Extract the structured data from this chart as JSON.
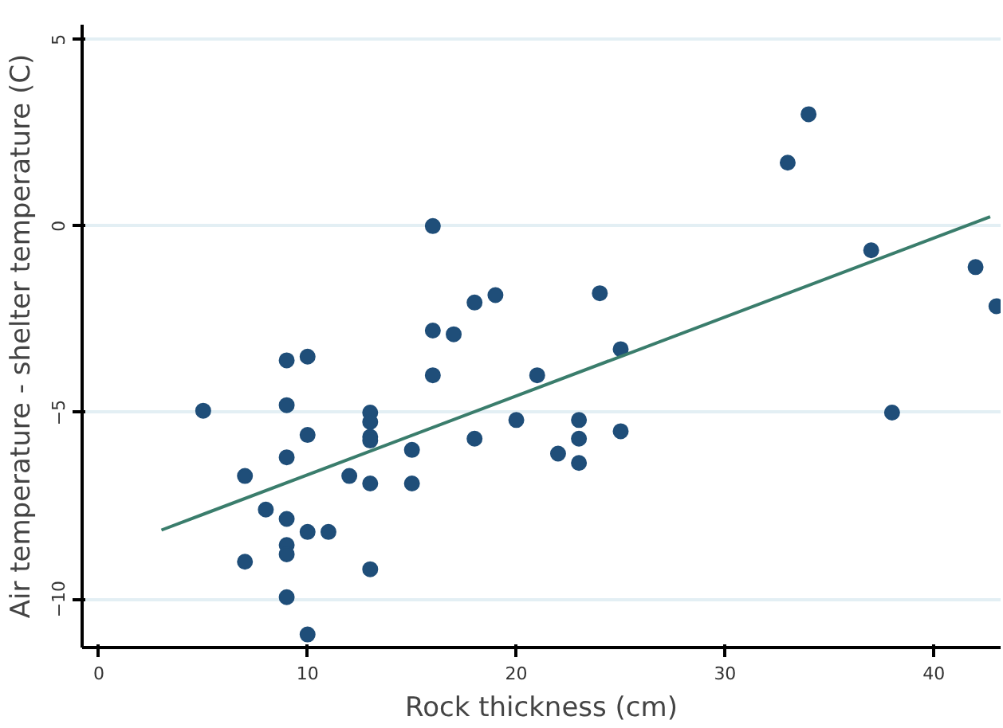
{
  "chart_data": {
    "type": "scatter",
    "xlabel": "Rock thickness (cm)",
    "ylabel": "Air temperature - shelter temperature (C)",
    "xlim": [
      -0.8,
      43.2
    ],
    "ylim": [
      -11.3,
      5.4
    ],
    "xticks": [
      0,
      10,
      20,
      30,
      40
    ],
    "yticks": [
      -10,
      -5,
      0,
      5
    ],
    "grid": "y",
    "marker": "circle",
    "series": [
      {
        "color": "#1f4e79",
        "x": [
          5,
          7,
          7,
          8,
          9,
          9,
          9,
          9,
          9,
          9,
          9,
          10,
          10,
          10,
          10,
          11,
          12,
          13,
          13,
          13,
          13,
          13,
          13,
          15,
          15,
          16,
          16,
          16,
          17,
          18,
          18,
          19,
          21,
          20,
          22,
          23,
          23,
          23,
          24,
          25,
          25,
          33,
          34,
          37,
          38,
          42,
          43
        ],
        "values": [
          -4.95,
          -6.7,
          -9.0,
          -7.6,
          -3.6,
          -4.8,
          -6.2,
          -7.85,
          -8.55,
          -8.8,
          -9.95,
          -3.5,
          -5.6,
          -8.2,
          -10.95,
          -8.2,
          -6.7,
          -5.0,
          -5.25,
          -5.65,
          -5.75,
          -6.9,
          -9.2,
          -6.0,
          -6.9,
          0,
          -2.8,
          -4.0,
          -2.9,
          -2.05,
          -5.7,
          -1.85,
          -4.0,
          -5.2,
          -6.1,
          -5.2,
          -5.7,
          -6.35,
          -1.8,
          -3.3,
          -5.5,
          1.7,
          3.0,
          -0.65,
          -5.0,
          -1.1,
          -2.15
        ]
      },
      {
        "type": "line",
        "marker": "none",
        "color": "#3a7d6c",
        "x": [
          3,
          42.7
        ],
        "values": [
          -8.15,
          0.25
        ]
      }
    ]
  }
}
